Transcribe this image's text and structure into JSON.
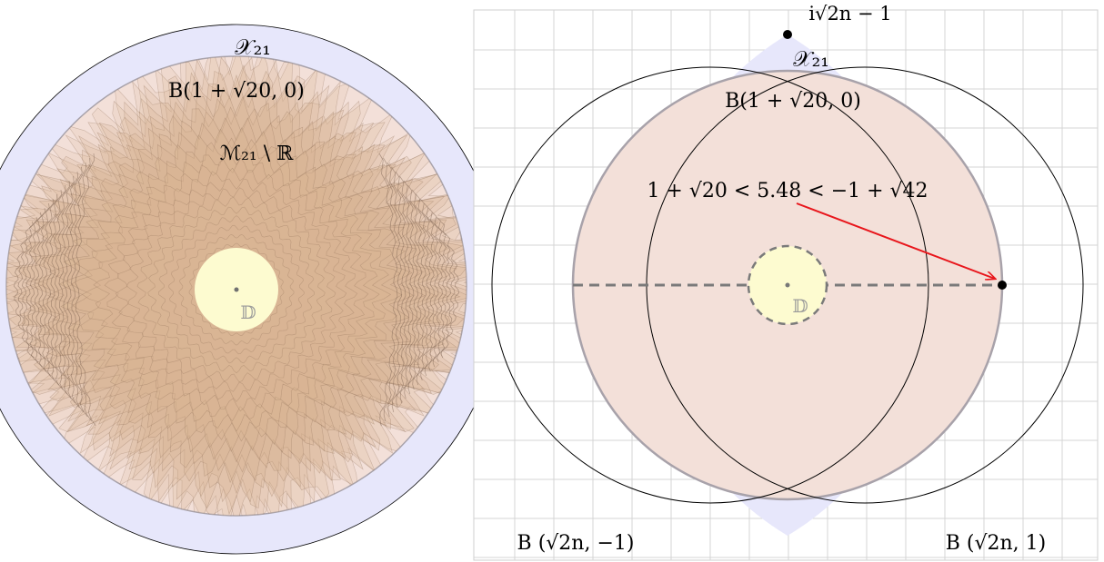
{
  "left_panel": {
    "labels": {
      "x21": "𝒳₂₁",
      "ball": "B(1 + √20, 0)",
      "m21": "ℳ₂₁ \\ ℝ",
      "disk": "𝔻"
    }
  },
  "right_panel": {
    "labels": {
      "top_point": "i√2n − 1",
      "x21": "𝒳₂₁",
      "ball": "B(1 + √20, 0)",
      "inequality": "1 + √20 < 5.48 < −1 + √42",
      "disk": "𝔻",
      "left_ball": "B (√2n, −1)",
      "right_ball": "B (√2n, 1)"
    }
  },
  "colors": {
    "lens_fill": "#e7e7fb",
    "ball_fill": "#f3e0d9",
    "ball_stroke": "#a8a2aa",
    "ripple_fill": "#d9b594",
    "disk_fill": "#fdfbd0",
    "grid": "#d4d4d4",
    "arrow": "#e8161c",
    "outline": "#000000"
  }
}
